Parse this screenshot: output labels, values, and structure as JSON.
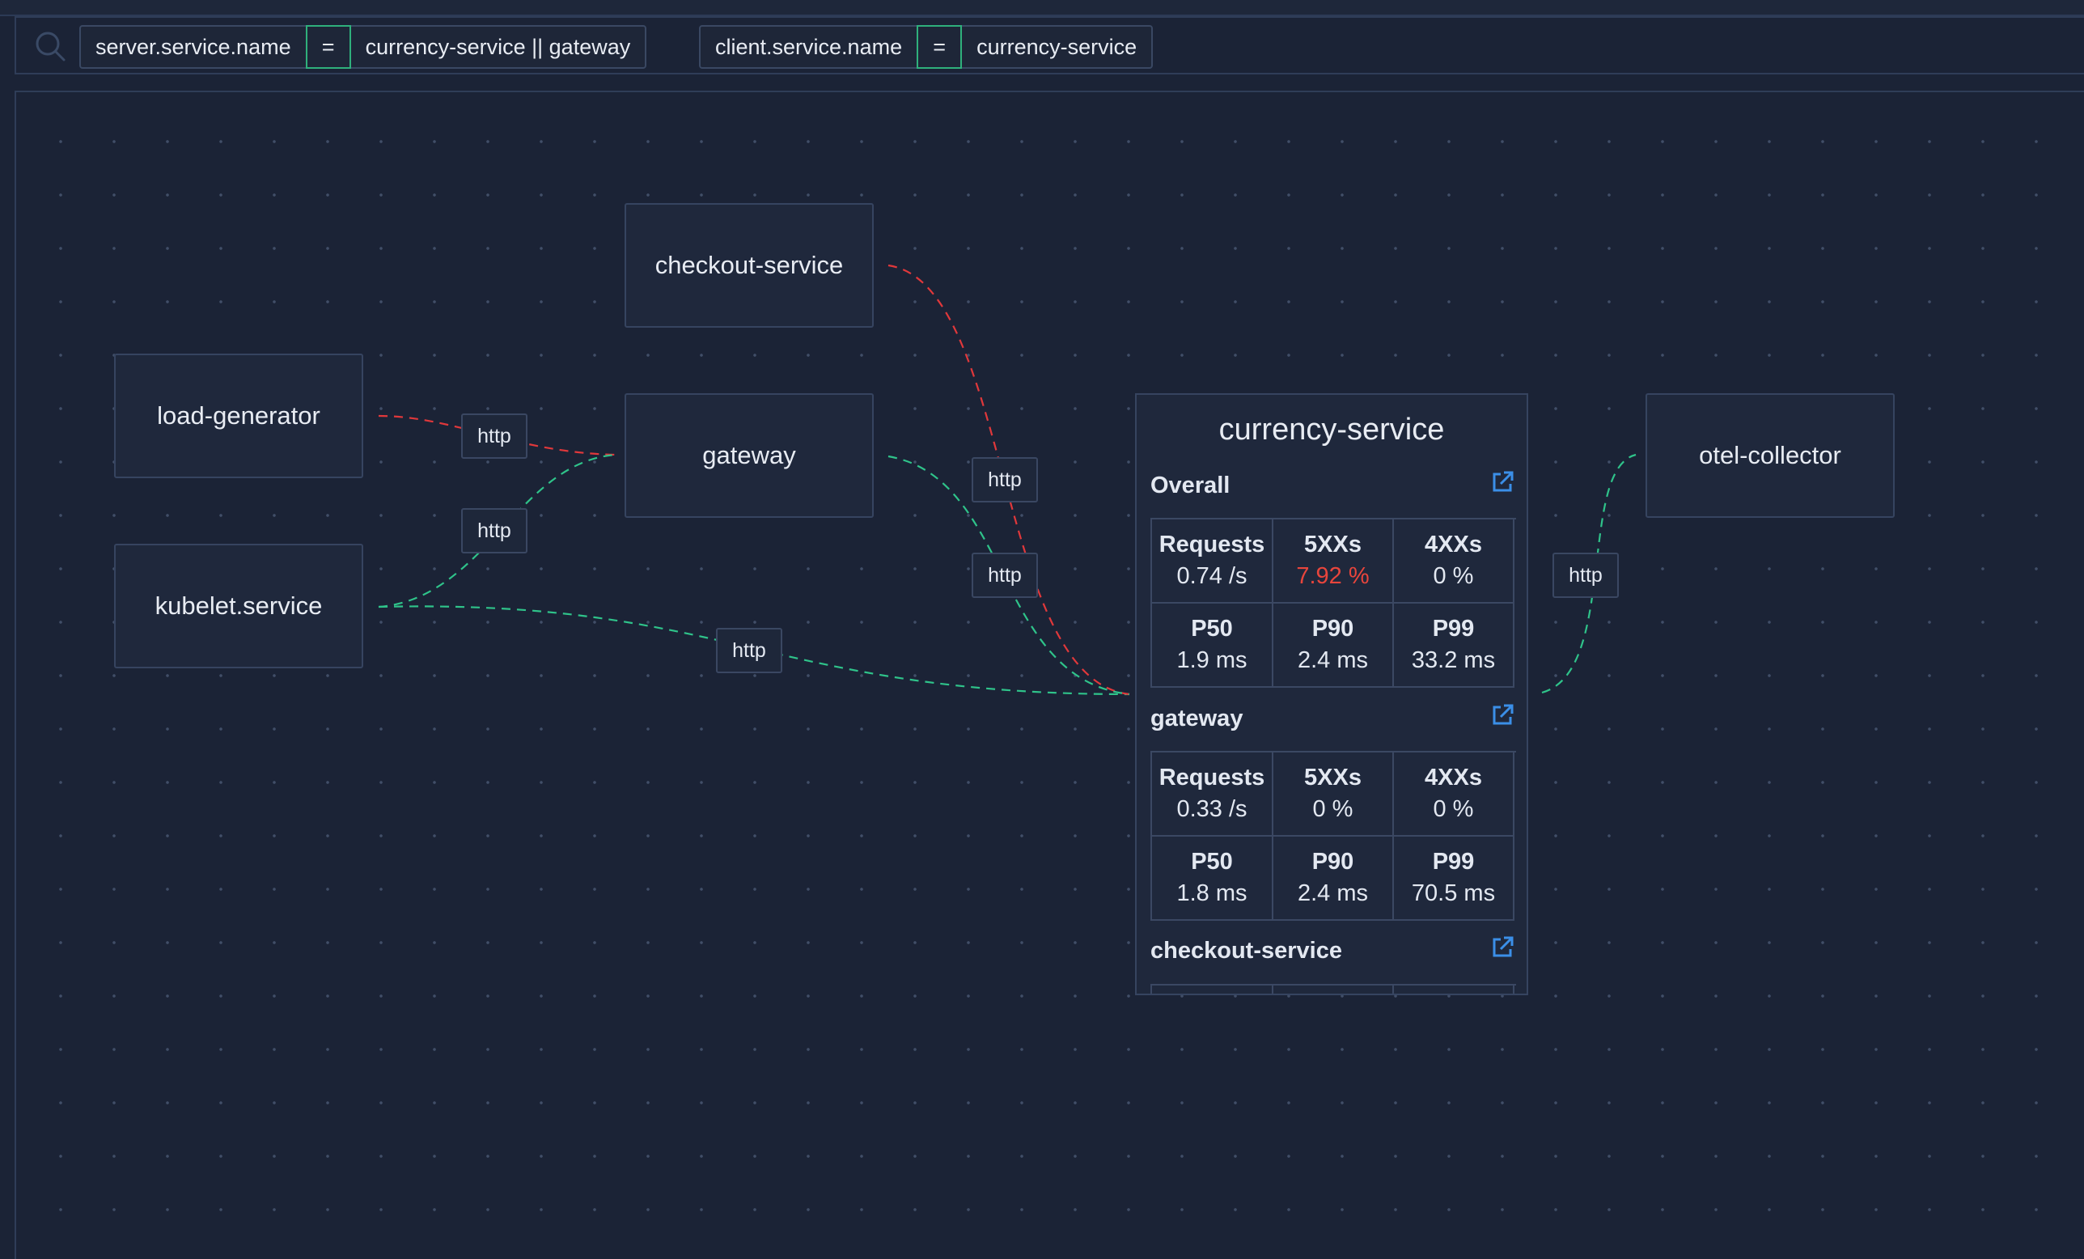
{
  "filters": [
    {
      "key": "server.service.name",
      "operator": "=",
      "value": "currency-service || gateway"
    },
    {
      "key": "client.service.name",
      "operator": "=",
      "value": "currency-service"
    }
  ],
  "nodes": {
    "checkout": "checkout-service",
    "load_generator": "load-generator",
    "gateway": "gateway",
    "kubelet": "kubelet.service",
    "otel_collector": "otel-collector"
  },
  "edge_labels": [
    "http",
    "http",
    "http",
    "http",
    "http",
    "http"
  ],
  "colors": {
    "error_edge": "#e0383b",
    "ok_edge": "#2fc38a",
    "accent": "#3b8fe8"
  },
  "panel": {
    "title": "currency-service",
    "sections": [
      {
        "title": "Overall",
        "metrics": [
          {
            "label": "Requests",
            "value": "0.74 /s"
          },
          {
            "label": "5XXs",
            "value": "7.92 %"
          },
          {
            "label": "4XXs",
            "value": "0 %"
          },
          {
            "label": "P50",
            "value": "1.9 ms"
          },
          {
            "label": "P90",
            "value": "2.4 ms"
          },
          {
            "label": "P99",
            "value": "33.2 ms"
          }
        ]
      },
      {
        "title": "gateway",
        "metrics": [
          {
            "label": "Requests",
            "value": "0.33 /s"
          },
          {
            "label": "5XXs",
            "value": "0 %"
          },
          {
            "label": "4XXs",
            "value": "0 %"
          },
          {
            "label": "P50",
            "value": "1.8 ms"
          },
          {
            "label": "P90",
            "value": "2.4 ms"
          },
          {
            "label": "P99",
            "value": "70.5 ms"
          }
        ]
      },
      {
        "title": "checkout-service"
      }
    ]
  }
}
